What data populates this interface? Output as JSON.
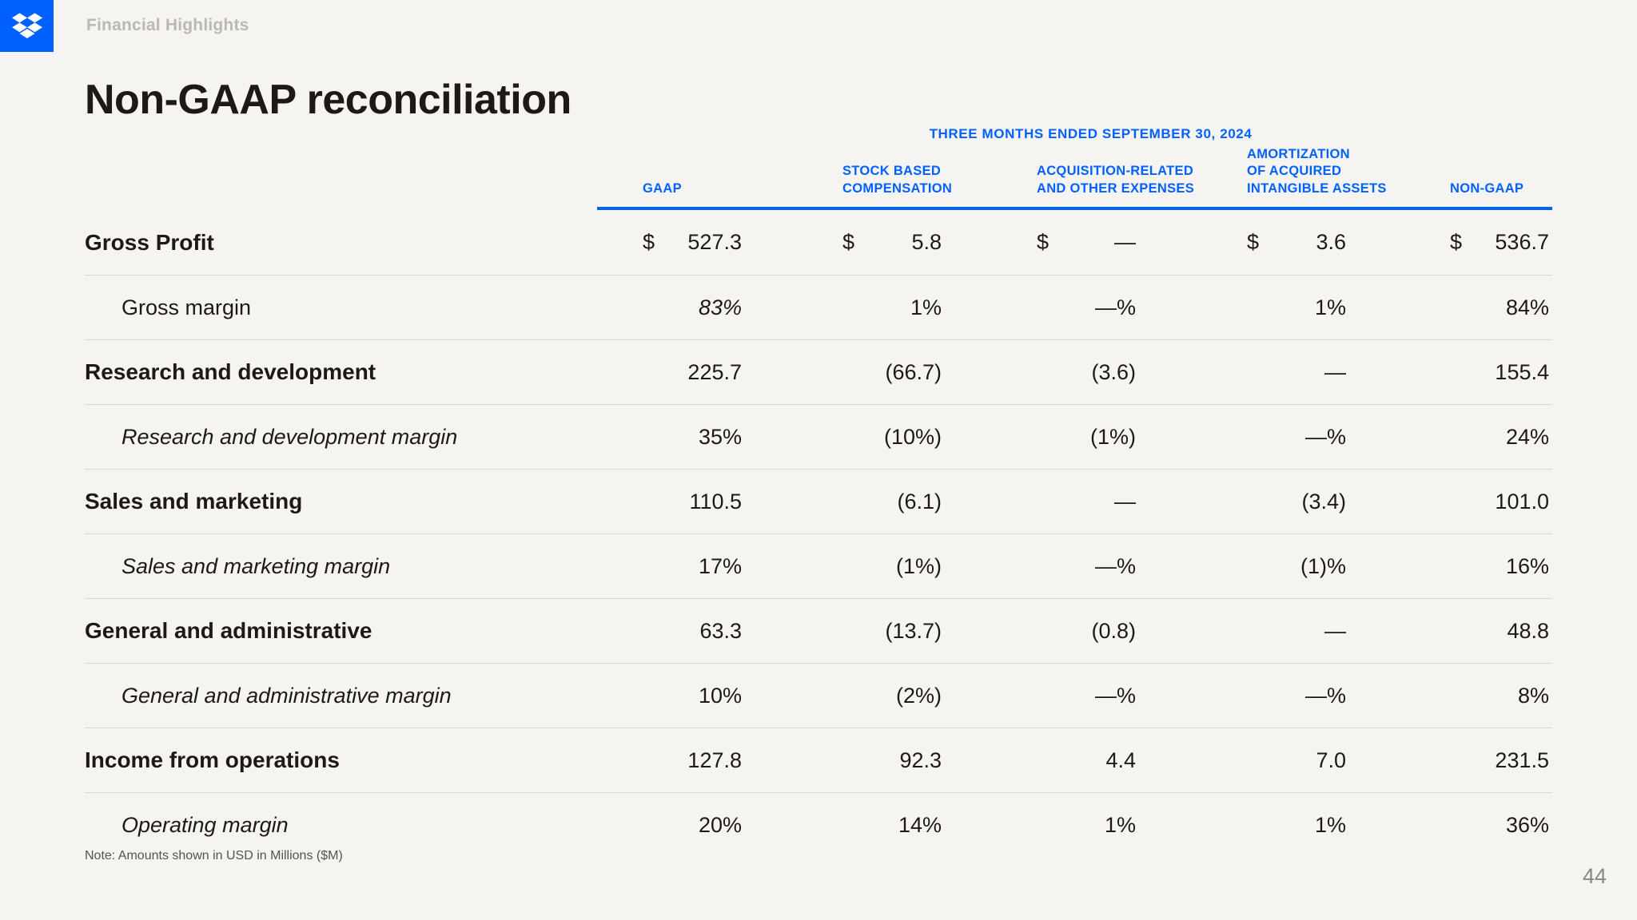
{
  "colors": {
    "brand_blue": "#0061FE",
    "background": "#F6F4F0",
    "text": "#1E1919",
    "divider": "#DAD7D1",
    "eyebrow_gray": "#BBB8B2",
    "note_gray": "#55534E",
    "page_number_gray": "#8B8883"
  },
  "header": {
    "eyebrow": "Financial Highlights",
    "logo": "dropbox-logo"
  },
  "page": {
    "title": "Non-GAAP reconciliation",
    "note": "Note: Amounts shown in USD in Millions ($M)",
    "page_number": "44"
  },
  "table": {
    "period_header": "THREE MONTHS ENDED SEPTEMBER 30, 2024",
    "columns": [
      {
        "id": "gaap",
        "label_lines": [
          "GAAP"
        ]
      },
      {
        "id": "stock-based-compensation",
        "label_lines": [
          "STOCK BASED",
          "COMPENSATION"
        ]
      },
      {
        "id": "acquisition-related",
        "label_lines": [
          "ACQUISITION-RELATED",
          "AND OTHER EXPENSES"
        ]
      },
      {
        "id": "amortization",
        "label_lines": [
          "AMORTIZATION",
          "OF ACQUIRED",
          "INTANGIBLE ASSETS"
        ]
      },
      {
        "id": "non-gaap",
        "label_lines": [
          "NON-GAAP"
        ]
      }
    ],
    "rows": [
      {
        "label": "Gross Profit",
        "label_style": "bold",
        "values": [
          {
            "cur": "$",
            "val": "527.3"
          },
          {
            "cur": "$",
            "val": "5.8"
          },
          {
            "cur": "$",
            "val": "—"
          },
          {
            "cur": "$",
            "val": "3.6"
          },
          {
            "cur": "$",
            "val": "536.7"
          }
        ]
      },
      {
        "label": "Gross margin",
        "label_style": "sub",
        "values": [
          {
            "val": "83%",
            "italic": true
          },
          {
            "val": "1%"
          },
          {
            "val": "—%"
          },
          {
            "val": "1%"
          },
          {
            "val": "84%"
          }
        ]
      },
      {
        "label": "Research and development",
        "label_style": "bold",
        "values": [
          {
            "val": "225.7"
          },
          {
            "val": "(66.7)"
          },
          {
            "val": "(3.6)"
          },
          {
            "val": "—"
          },
          {
            "val": "155.4"
          }
        ]
      },
      {
        "label": "Research and development margin",
        "label_style": "sub-italic",
        "values": [
          {
            "val": "35%"
          },
          {
            "val": "(10%)"
          },
          {
            "val": "(1%)"
          },
          {
            "val": "—%"
          },
          {
            "val": "24%"
          }
        ]
      },
      {
        "label": "Sales and marketing",
        "label_style": "bold",
        "values": [
          {
            "val": "110.5"
          },
          {
            "val": "(6.1)"
          },
          {
            "val": "—"
          },
          {
            "val": "(3.4)"
          },
          {
            "val": "101.0"
          }
        ]
      },
      {
        "label": "Sales and marketing margin",
        "label_style": "sub-italic",
        "values": [
          {
            "val": "17%"
          },
          {
            "val": "(1%)"
          },
          {
            "val": "—%"
          },
          {
            "val": "(1)%"
          },
          {
            "val": "16%"
          }
        ]
      },
      {
        "label": "General and administrative",
        "label_style": "bold",
        "values": [
          {
            "val": "63.3"
          },
          {
            "val": "(13.7)"
          },
          {
            "val": "(0.8)"
          },
          {
            "val": "—"
          },
          {
            "val": "48.8"
          }
        ]
      },
      {
        "label": "General and administrative margin",
        "label_style": "sub-italic",
        "values": [
          {
            "val": "10%"
          },
          {
            "val": "(2%)"
          },
          {
            "val": "—%"
          },
          {
            "val": "—%"
          },
          {
            "val": "8%"
          }
        ]
      },
      {
        "label": "Income from operations",
        "label_style": "bold",
        "values": [
          {
            "val": "127.8"
          },
          {
            "val": "92.3"
          },
          {
            "val": "4.4"
          },
          {
            "val": "7.0"
          },
          {
            "val": "231.5"
          }
        ]
      },
      {
        "label": "Operating margin",
        "label_style": "sub-italic",
        "values": [
          {
            "val": "20%"
          },
          {
            "val": "14%"
          },
          {
            "val": "1%"
          },
          {
            "val": "1%"
          },
          {
            "val": "36%"
          }
        ]
      }
    ]
  }
}
